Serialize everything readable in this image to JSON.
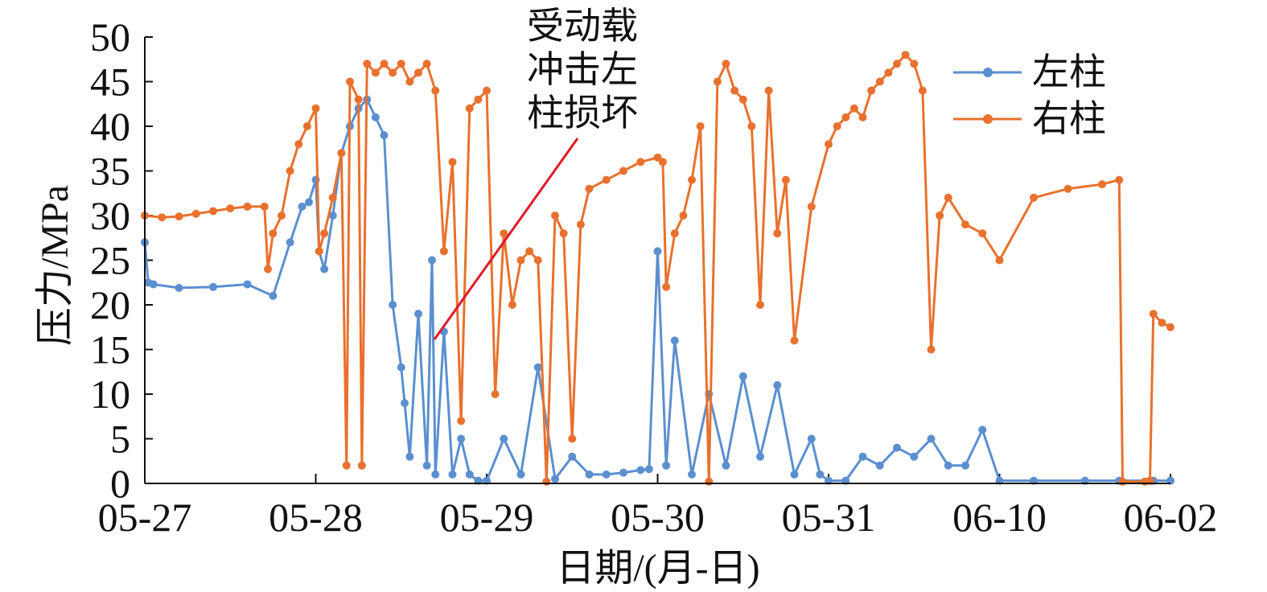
{
  "chart_data": {
    "type": "line",
    "title": "",
    "xlabel": "日期/(月-日)",
    "ylabel": "压力/MPa",
    "ylim": [
      0,
      50
    ],
    "yticks": [
      0,
      5,
      10,
      15,
      20,
      25,
      30,
      35,
      40,
      45,
      50
    ],
    "x_tick_labels": [
      "05-27",
      "05-28",
      "05-29",
      "05-30",
      "05-31",
      "06-10",
      "06-02"
    ],
    "xlim": [
      0,
      6
    ],
    "grid": false,
    "legend_position": "top-right",
    "annotation": {
      "lines": [
        "受动载",
        "冲击左",
        "柱损坏"
      ]
    },
    "series": [
      {
        "name": "左柱",
        "color": "#5b8fcf",
        "x": [
          0,
          0.02,
          0.05,
          0.2,
          0.4,
          0.6,
          0.75,
          0.85,
          0.92,
          0.96,
          1.0,
          1.02,
          1.05,
          1.1,
          1.15,
          1.2,
          1.25,
          1.3,
          1.35,
          1.4,
          1.45,
          1.5,
          1.52,
          1.55,
          1.6,
          1.65,
          1.68,
          1.7,
          1.75,
          1.8,
          1.85,
          1.9,
          1.95,
          2.0,
          2.1,
          2.2,
          2.3,
          2.4,
          2.5,
          2.6,
          2.7,
          2.8,
          2.9,
          2.95,
          3.0,
          3.05,
          3.1,
          3.2,
          3.3,
          3.4,
          3.5,
          3.6,
          3.7,
          3.8,
          3.9,
          3.95,
          4.0,
          4.1,
          4.2,
          4.3,
          4.4,
          4.5,
          4.6,
          4.7,
          4.8,
          4.9,
          5.0,
          5.2,
          5.5,
          5.7,
          5.9,
          6.0
        ],
        "values": [
          27,
          22.5,
          22.3,
          21.9,
          22.0,
          22.3,
          21.0,
          27,
          31,
          31.5,
          34,
          26,
          24,
          30,
          37,
          40,
          42,
          43,
          41,
          39,
          20,
          13,
          9,
          3,
          19,
          2,
          25,
          1,
          17,
          1,
          5,
          1,
          0.3,
          0.3,
          5,
          1,
          13,
          0.5,
          3,
          1,
          1.0,
          1.2,
          1.5,
          1.6,
          26,
          2,
          16,
          1,
          10,
          2,
          12,
          3,
          11,
          1,
          5,
          1,
          0.3,
          0.3,
          3,
          2,
          4,
          3,
          5,
          2,
          2,
          6,
          0.3,
          0.3,
          0.3,
          0.3,
          0.3,
          0.3
        ]
      },
      {
        "name": "右柱",
        "color": "#e8712e",
        "x": [
          0,
          0.1,
          0.2,
          0.3,
          0.4,
          0.5,
          0.6,
          0.7,
          0.72,
          0.75,
          0.8,
          0.85,
          0.9,
          0.95,
          1.0,
          1.02,
          1.05,
          1.1,
          1.15,
          1.18,
          1.2,
          1.25,
          1.27,
          1.3,
          1.35,
          1.4,
          1.45,
          1.5,
          1.55,
          1.6,
          1.65,
          1.7,
          1.75,
          1.8,
          1.85,
          1.9,
          1.95,
          2.0,
          2.05,
          2.1,
          2.15,
          2.2,
          2.25,
          2.3,
          2.35,
          2.4,
          2.45,
          2.5,
          2.55,
          2.6,
          2.7,
          2.8,
          2.9,
          3.0,
          3.03,
          3.05,
          3.1,
          3.15,
          3.2,
          3.25,
          3.3,
          3.35,
          3.4,
          3.45,
          3.5,
          3.55,
          3.6,
          3.65,
          3.7,
          3.75,
          3.8,
          3.9,
          4.0,
          4.05,
          4.1,
          4.15,
          4.2,
          4.25,
          4.3,
          4.35,
          4.4,
          4.45,
          4.5,
          4.55,
          4.6,
          4.65,
          4.7,
          4.8,
          4.9,
          5.0,
          5.2,
          5.4,
          5.6,
          5.7,
          5.72,
          5.85,
          5.88,
          5.9,
          5.95,
          6.0
        ],
        "values": [
          30,
          29.8,
          29.9,
          30.2,
          30.5,
          30.8,
          31,
          31,
          24,
          28,
          30,
          35,
          38,
          40,
          42,
          26,
          28,
          32,
          37,
          2,
          45,
          43,
          2,
          47,
          46,
          47,
          46,
          47,
          45,
          46,
          47,
          44,
          26,
          36,
          7,
          42,
          43,
          44,
          10,
          28,
          20,
          25,
          26,
          25,
          0.2,
          30,
          28,
          5,
          29,
          33,
          34,
          35,
          36,
          36.5,
          36,
          22,
          28,
          30,
          34,
          40,
          0.2,
          45,
          47,
          44,
          43,
          40,
          20,
          44,
          28,
          34,
          16,
          31,
          38,
          40,
          41,
          42,
          41,
          44,
          45,
          46,
          47,
          48,
          47,
          44,
          15,
          30,
          32,
          29,
          28,
          25,
          32,
          33,
          33.5,
          34,
          0.2,
          0.2,
          0.3,
          19,
          18,
          17.5
        ]
      }
    ]
  }
}
